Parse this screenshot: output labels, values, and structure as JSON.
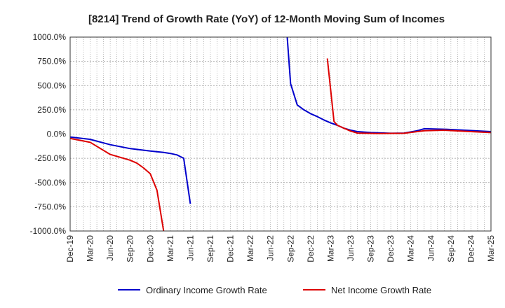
{
  "chart_data": {
    "type": "line",
    "title": "[8214]  Trend of Growth Rate (YoY) of 12-Month Moving Sum of Incomes",
    "xlabel": "",
    "ylabel": "",
    "ylim": [
      -1000,
      1000
    ],
    "y_ticks": [
      1000,
      750,
      500,
      250,
      0,
      -250,
      -500,
      -750,
      -1000
    ],
    "y_tick_labels": [
      "1000.0%",
      "750.0%",
      "500.0%",
      "250.0%",
      "0.0%",
      "-250.0%",
      "-500.0%",
      "-750.0%",
      "-1000.0%"
    ],
    "x_ticks": [
      "Dec-19",
      "Mar-20",
      "Jun-20",
      "Sep-20",
      "Dec-20",
      "Mar-21",
      "Jun-21",
      "Sep-21",
      "Dec-21",
      "Mar-22",
      "Jun-22",
      "Sep-22",
      "Dec-22",
      "Mar-23",
      "Jun-23",
      "Sep-23",
      "Dec-23",
      "Mar-24",
      "Jun-24",
      "Sep-24",
      "Dec-24",
      "Mar-25"
    ],
    "x_range_months": [
      0,
      63
    ],
    "grid": true,
    "legend_position": "bottom",
    "series": [
      {
        "name": "Ordinary Income Growth Rate",
        "color": "#0000cc",
        "segments": [
          [
            [
              0,
              -30
            ],
            [
              3,
              -55
            ],
            [
              6,
              -110
            ],
            [
              9,
              -150
            ],
            [
              12,
              -175
            ],
            [
              14,
              -190
            ],
            [
              15,
              -200
            ],
            [
              16,
              -215
            ],
            [
              17,
              -250
            ],
            [
              18,
              -720
            ]
          ],
          [
            [
              32.5,
              1000
            ],
            [
              33,
              520
            ],
            [
              34,
              300
            ],
            [
              35,
              250
            ],
            [
              36,
              210
            ],
            [
              37,
              180
            ],
            [
              38,
              145
            ],
            [
              39,
              115
            ],
            [
              40,
              90
            ],
            [
              41,
              60
            ],
            [
              42,
              40
            ],
            [
              43,
              25
            ],
            [
              45,
              15
            ],
            [
              48,
              8
            ],
            [
              50,
              10
            ],
            [
              52,
              35
            ],
            [
              53,
              55
            ],
            [
              56,
              50
            ],
            [
              59,
              40
            ],
            [
              63,
              25
            ]
          ]
        ]
      },
      {
        "name": "Net Income Growth Rate",
        "color": "#dd0000",
        "segments": [
          [
            [
              0,
              -45
            ],
            [
              3,
              -85
            ],
            [
              6,
              -210
            ],
            [
              9,
              -270
            ],
            [
              10,
              -300
            ],
            [
              11,
              -350
            ],
            [
              12,
              -410
            ],
            [
              13,
              -580
            ],
            [
              14,
              -1000
            ]
          ],
          [
            [
              38.5,
              780
            ],
            [
              39.5,
              130
            ],
            [
              40,
              90
            ],
            [
              41,
              60
            ],
            [
              42,
              30
            ],
            [
              43,
              10
            ],
            [
              46,
              5
            ],
            [
              50,
              8
            ],
            [
              53,
              35
            ],
            [
              56,
              40
            ],
            [
              60,
              25
            ],
            [
              63,
              15
            ]
          ]
        ]
      }
    ]
  }
}
